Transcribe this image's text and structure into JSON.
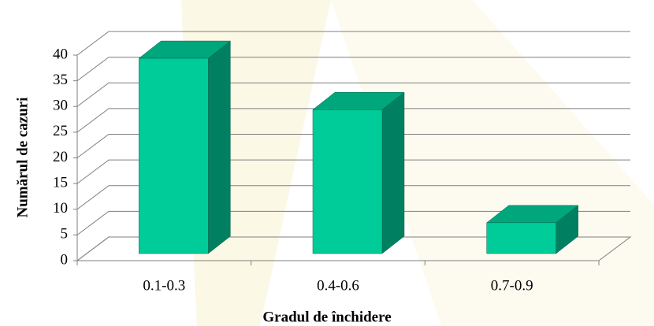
{
  "chart_data": {
    "type": "bar3d",
    "x_label": "Gradul de închidere",
    "y_label": "Numărul de cazuri",
    "categories": [
      "0.1-0.3",
      "0.4-0.6",
      "0.7-0.9"
    ],
    "values": [
      38,
      28,
      6
    ],
    "color": "#00cc99",
    "ylim": [
      0,
      40
    ],
    "yticks": [
      0,
      5,
      10,
      15,
      20,
      25,
      30,
      35,
      40
    ],
    "grid": true
  }
}
